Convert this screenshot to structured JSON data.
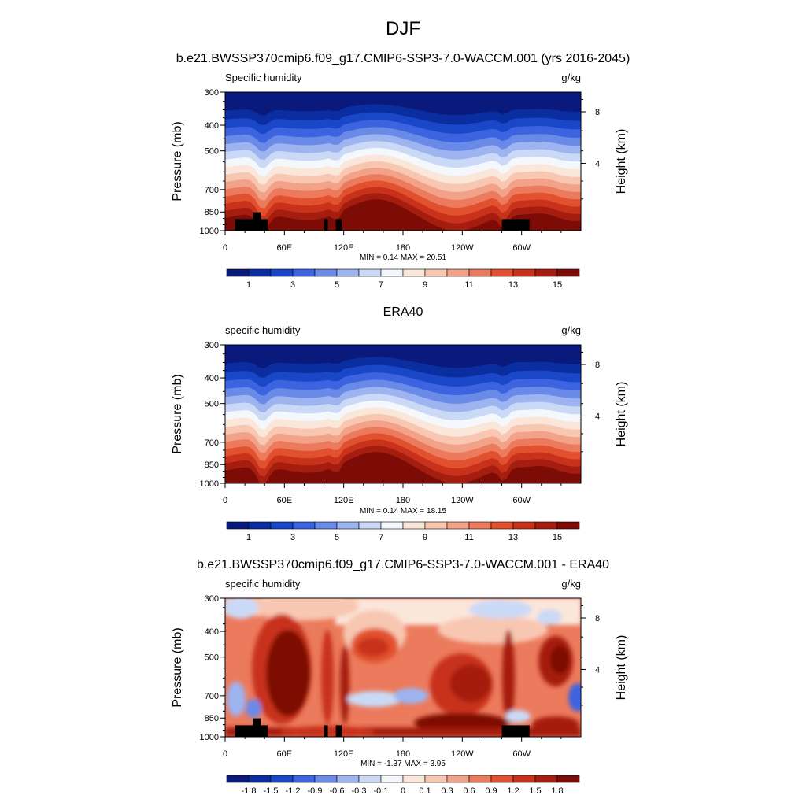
{
  "figure": {
    "title": "DJF"
  },
  "panels": [
    {
      "title": "b.e21.BWSSP370cmip6.f09_g17.CMIP6-SSP3-7.0-WACCM.001 (yrs 2016-2045)",
      "left_label": "Specific humidity",
      "right_label": "g/kg",
      "minmax": "MIN =   0.14  MAX =  20.51"
    },
    {
      "title": "ERA40",
      "left_label": "specific humidity",
      "right_label": "g/kg",
      "minmax": "MIN =   0.14  MAX =  18.15"
    },
    {
      "title": "b.e21.BWSSP370cmip6.f09_g17.CMIP6-SSP3-7.0-WACCM.001 - ERA40",
      "left_label": "specific humidity",
      "right_label": "g/kg",
      "minmax": "MIN =  -1.37  MAX =   3.95"
    }
  ],
  "axes": {
    "ylabel": "Pressure (mb)",
    "ylabel_right": "Height (km)",
    "xticks": [
      "0",
      "60E",
      "120E",
      "180",
      "120W",
      "60W"
    ],
    "yticks": [
      "300",
      "400",
      "500",
      "700",
      "850",
      "1000"
    ],
    "yticks_right": [
      "8",
      "4"
    ]
  },
  "colorbars": {
    "abs_labels": [
      "1",
      "3",
      "5",
      "7",
      "9",
      "11",
      "13",
      "15"
    ],
    "diff_labels": [
      "-1.8",
      "-1.5",
      "-1.2",
      "-0.9",
      "-0.6",
      "-0.3",
      "-0.1",
      "0",
      "0.1",
      "0.3",
      "0.6",
      "0.9",
      "1.2",
      "1.5",
      "1.8"
    ]
  },
  "colors": {
    "palette": [
      "#0a1a7c",
      "#0a2ea0",
      "#1a46c8",
      "#3c64e0",
      "#6a8ae8",
      "#9eb4f0",
      "#cad9f6",
      "#f4f8fc",
      "#fbe6da",
      "#f8c7b2",
      "#f2a288",
      "#ec7a5c",
      "#e2512f",
      "#c8321a",
      "#a51d0e",
      "#7d0c06"
    ]
  },
  "chart_data": [
    {
      "type": "heatmap",
      "title": "b.e21.BWSSP370cmip6.f09_g17.CMIP6-SSP3-7.0-WACCM.001 (yrs 2016-2045)",
      "subtitle": "DJF",
      "variable": "Specific humidity",
      "units": "g/kg",
      "xlabel": "",
      "ylabel": "Pressure (mb)",
      "ylabel_right": "Height (km)",
      "x_ticks": [
        "0",
        "60E",
        "120E",
        "180",
        "120W",
        "60W"
      ],
      "x_range_deg_east": [
        0,
        357
      ],
      "y_ticks_mb": [
        300,
        400,
        500,
        700,
        850,
        1000
      ],
      "y_range_mb": [
        1000,
        300
      ],
      "y_scale": "log",
      "right_ticks_km": [
        8,
        4
      ],
      "levels": [
        0,
        1,
        2,
        3,
        4,
        5,
        6,
        7,
        8,
        9,
        10,
        11,
        12,
        13,
        14,
        15
      ],
      "min": 0.14,
      "max": 20.51,
      "orography_masked": true
    },
    {
      "type": "heatmap",
      "title": "ERA40",
      "variable": "specific humidity",
      "units": "g/kg",
      "xlabel": "",
      "ylabel": "Pressure (mb)",
      "ylabel_right": "Height (km)",
      "x_ticks": [
        "0",
        "60E",
        "120E",
        "180",
        "120W",
        "60W"
      ],
      "x_range_deg_east": [
        0,
        357
      ],
      "y_ticks_mb": [
        300,
        400,
        500,
        700,
        850,
        1000
      ],
      "y_range_mb": [
        1000,
        300
      ],
      "y_scale": "log",
      "right_ticks_km": [
        8,
        4
      ],
      "levels": [
        0,
        1,
        2,
        3,
        4,
        5,
        6,
        7,
        8,
        9,
        10,
        11,
        12,
        13,
        14,
        15
      ],
      "min": 0.14,
      "max": 18.15,
      "orography_masked": false
    },
    {
      "type": "heatmap",
      "title": "b.e21.BWSSP370cmip6.f09_g17.CMIP6-SSP3-7.0-WACCM.001 - ERA40",
      "variable": "specific humidity",
      "units": "g/kg",
      "xlabel": "",
      "ylabel": "Pressure (mb)",
      "ylabel_right": "Height (km)",
      "x_ticks": [
        "0",
        "60E",
        "120E",
        "180",
        "120W",
        "60W"
      ],
      "x_range_deg_east": [
        0,
        357
      ],
      "y_ticks_mb": [
        300,
        400,
        500,
        700,
        850,
        1000
      ],
      "y_range_mb": [
        1000,
        300
      ],
      "y_scale": "log",
      "right_ticks_km": [
        8,
        4
      ],
      "levels": [
        -1.8,
        -1.5,
        -1.2,
        -0.9,
        -0.6,
        -0.3,
        -0.1,
        0,
        0.1,
        0.3,
        0.6,
        0.9,
        1.2,
        1.5,
        1.8
      ],
      "min": -1.37,
      "max": 3.95,
      "orography_masked": true
    }
  ]
}
